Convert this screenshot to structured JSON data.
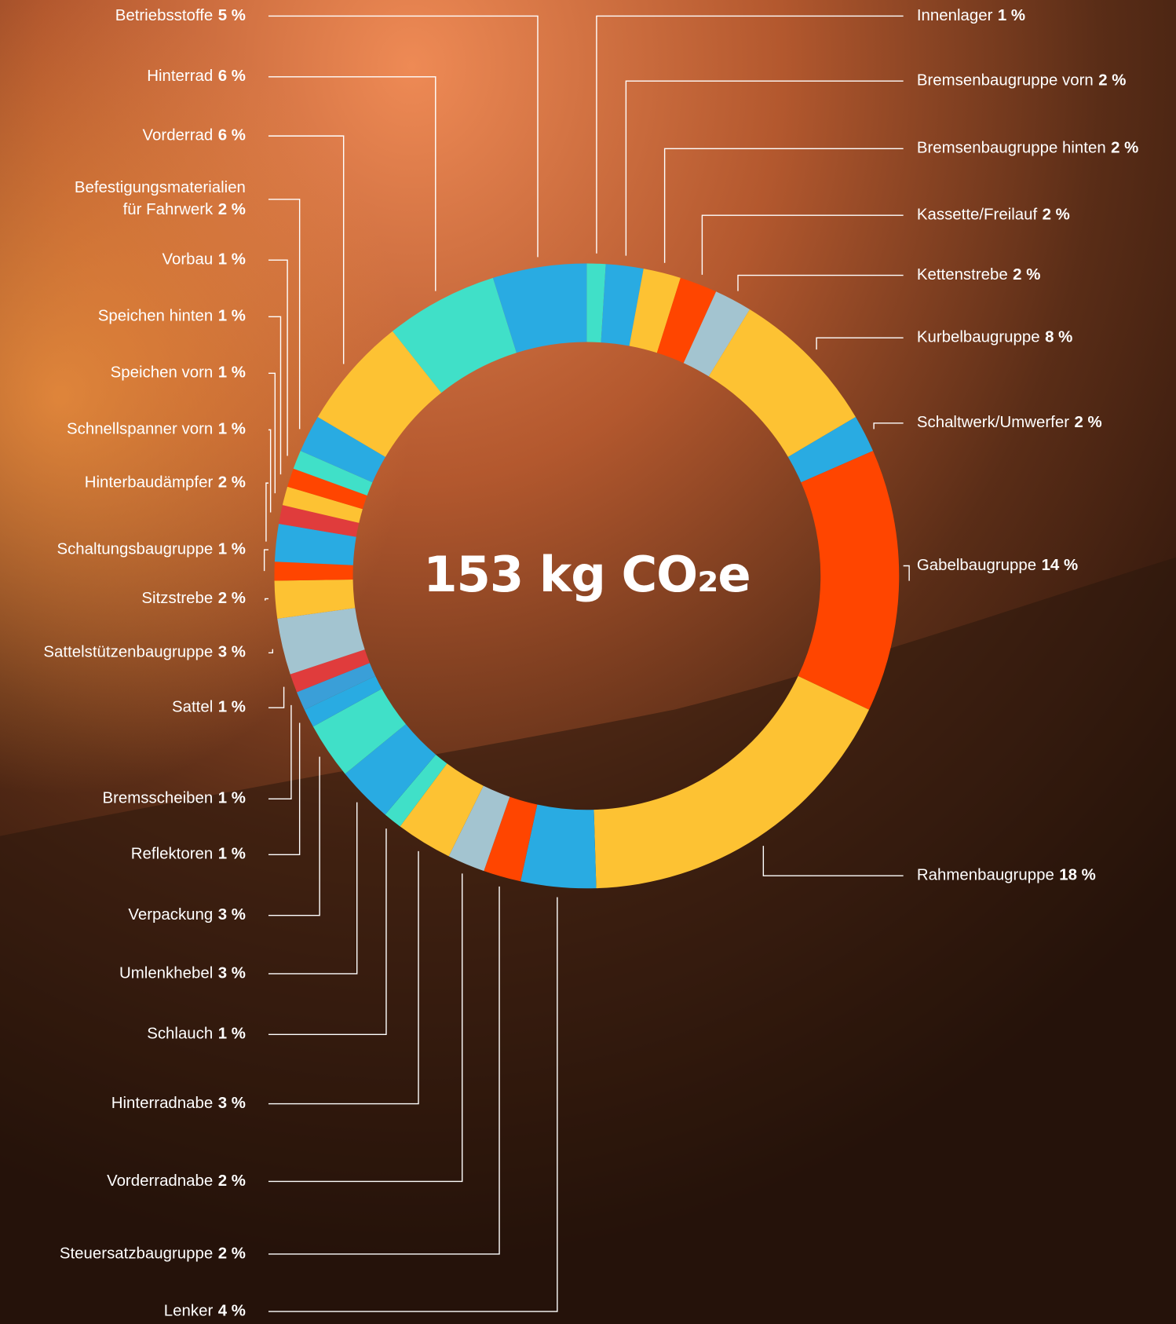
{
  "chart_data": {
    "type": "pie",
    "donut": true,
    "center_label": "153 kg CO₂e",
    "categories": [
      "Innenlager",
      "Bremsenbaugruppe vorn",
      "Bremsenbaugruppe hinten",
      "Kassette/Freilauf",
      "Kettenstrebe",
      "Kurbelbaugruppe",
      "Schaltwerk/Umwerfer",
      "Gabelbaugruppe",
      "Rahmenbaugruppe",
      "Lenker",
      "Steuersatzbaugruppe",
      "Vorderradnabe",
      "Hinterradnabe",
      "Schlauch",
      "Umlenkhebel",
      "Verpackung",
      "Reflektoren",
      "Bremsscheiben",
      "Sattel",
      "Sattelstützenbaugruppe",
      "Sitzstrebe",
      "Schaltungsbaugruppe",
      "Hinterbaudämpfer",
      "Schnellspanner vorn",
      "Speichen vorn",
      "Speichen hinten",
      "Vorbau",
      "Befestigungsmaterialien\nfür Fahrwerk",
      "Vorderrad",
      "Hinterrad",
      "Betriebsstoffe"
    ],
    "values": [
      1,
      2,
      2,
      2,
      2,
      8,
      2,
      14,
      18,
      4,
      2,
      2,
      3,
      1,
      3,
      3,
      1,
      1,
      1,
      3,
      2,
      1,
      2,
      1,
      1,
      1,
      1,
      2,
      6,
      6,
      5
    ],
    "value_labels": [
      "1 %",
      "2 %",
      "2 %",
      "2 %",
      "2 %",
      "8 %",
      "2 %",
      "14 %",
      "18 %",
      "4 %",
      "2 %",
      "2 %",
      "3 %",
      "1 %",
      "3 %",
      "3 %",
      "1 %",
      "1 %",
      "1 %",
      "3 %",
      "2 %",
      "1 %",
      "2 %",
      "1 %",
      "1 %",
      "1 %",
      "1 %",
      "2 %",
      "6 %",
      "6 %",
      "5 %"
    ],
    "colors": [
      "#40e0c8",
      "#29abe2",
      "#fdc233",
      "#ff4500",
      "#a3c4d0",
      "#fdc233",
      "#29abe2",
      "#ff4500",
      "#fdc233",
      "#29abe2",
      "#ff4500",
      "#a3c4d0",
      "#fdc233",
      "#40e0c8",
      "#29abe2",
      "#40e0c8",
      "#29abe2",
      "#3a9fd8",
      "#e03c3c",
      "#a3c4d0",
      "#fdc233",
      "#ff4500",
      "#29abe2",
      "#e03c3c",
      "#fdc233",
      "#ff4500",
      "#40e0c8",
      "#29abe2",
      "#fdc233",
      "#40e0c8",
      "#29abe2"
    ]
  }
}
